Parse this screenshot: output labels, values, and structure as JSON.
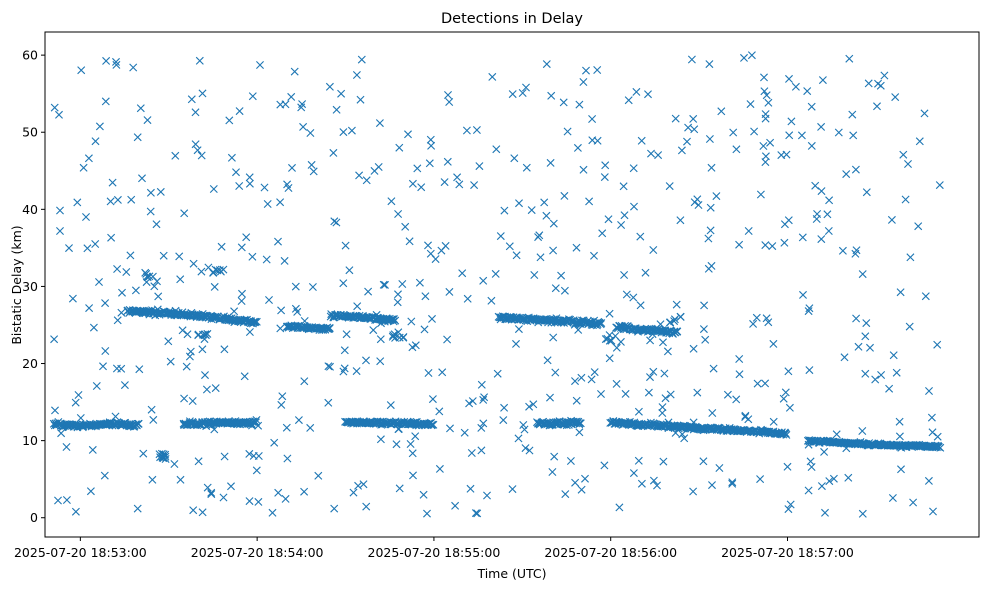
{
  "chart_data": {
    "type": "scatter",
    "title": "Detections in Delay",
    "xlabel": "Time (UTC)",
    "ylabel": "Bistatic Delay (km)",
    "x_unit": "UTC time",
    "marker": "x",
    "color": "#1f77b4",
    "grid": false,
    "legend": "none",
    "xlim": [
      "2025-07-20 18:52:48",
      "2025-07-20 18:58:05"
    ],
    "ylim": [
      -2.5,
      63
    ],
    "x_ticks": [
      "2025-07-20 18:53:00",
      "2025-07-20 18:54:00",
      "2025-07-20 18:55:00",
      "2025-07-20 18:56:00",
      "2025-07-20 18:57:00"
    ],
    "y_ticks": [
      0,
      10,
      20,
      30,
      40,
      50,
      60
    ],
    "time_range": [
      "2025-07-20 18:52:51",
      "2025-07-20 18:57:52"
    ],
    "tracks": [
      {
        "points": [
          [
            "18:52:51",
            12.1
          ],
          [
            "18:53:00",
            11.9
          ],
          [
            "18:53:10",
            12.2
          ],
          [
            "18:53:20",
            12.0
          ]
        ],
        "spread": 0.3
      },
      {
        "points": [
          [
            "18:53:35",
            12.1
          ],
          [
            "18:53:45",
            12.3
          ],
          [
            "18:54:00",
            12.3
          ]
        ],
        "spread": 0.3
      },
      {
        "points": [
          [
            "18:54:30",
            12.4
          ],
          [
            "18:54:45",
            12.3
          ],
          [
            "18:55:00",
            12.1
          ]
        ],
        "spread": 0.25
      },
      {
        "points": [
          [
            "18:55:35",
            12.2
          ],
          [
            "18:55:50",
            12.3
          ]
        ],
        "spread": 0.3
      },
      {
        "points": [
          [
            "18:56:00",
            12.3
          ],
          [
            "18:56:15",
            12.0
          ],
          [
            "18:56:30",
            11.6
          ],
          [
            "18:56:50",
            11.2
          ],
          [
            "18:57:00",
            10.9
          ]
        ],
        "spread": 0.25
      },
      {
        "points": [
          [
            "18:57:07",
            10.0
          ],
          [
            "18:57:20",
            9.7
          ],
          [
            "18:57:35",
            9.4
          ],
          [
            "18:57:52",
            9.2
          ]
        ],
        "spread": 0.2
      },
      {
        "points": [
          [
            "18:53:16",
            26.9
          ],
          [
            "18:53:30",
            26.5
          ],
          [
            "18:53:45",
            26.0
          ],
          [
            "18:54:00",
            25.3
          ]
        ],
        "spread": 0.3
      },
      {
        "points": [
          [
            "18:54:10",
            24.8
          ],
          [
            "18:54:25",
            24.5
          ]
        ],
        "spread": 0.25
      },
      {
        "points": [
          [
            "18:54:25",
            26.2
          ],
          [
            "18:54:35",
            26.0
          ],
          [
            "18:54:47",
            25.6
          ]
        ],
        "spread": 0.25
      },
      {
        "points": [
          [
            "18:55:22",
            26.0
          ],
          [
            "18:55:40",
            25.6
          ],
          [
            "18:55:57",
            25.2
          ]
        ],
        "spread": 0.3
      },
      {
        "points": [
          [
            "18:56:02",
            24.7
          ],
          [
            "18:56:15",
            24.3
          ],
          [
            "18:56:23",
            24.0
          ]
        ],
        "spread": 0.3
      }
    ],
    "clusters": [
      {
        "x": "18:53:27",
        "y": 8.0,
        "n": 12
      },
      {
        "x": "18:53:23",
        "y": 31.5,
        "n": 6
      },
      {
        "x": "18:53:47",
        "y": 31.8,
        "n": 6
      },
      {
        "x": "18:53:42",
        "y": 23.5,
        "n": 8
      },
      {
        "x": "18:54:48",
        "y": 23.7,
        "n": 8
      },
      {
        "x": "18:56:00",
        "y": 23.3,
        "n": 6
      },
      {
        "x": "18:56:22",
        "y": 25.7,
        "n": 6
      }
    ],
    "noise": {
      "count": 620,
      "y_range": [
        0.5,
        60
      ]
    }
  }
}
